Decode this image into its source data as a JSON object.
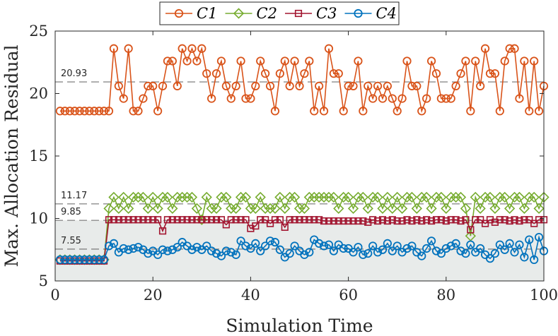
{
  "chart_data": {
    "type": "line",
    "title": "",
    "xlabel": "Simulation Time",
    "ylabel": "Max. Allocation Residual",
    "xlim": [
      0,
      100
    ],
    "ylim": [
      5,
      25
    ],
    "xticks": [
      "0",
      "20",
      "40",
      "60",
      "80",
      "100"
    ],
    "yticks": [
      "5",
      "10",
      "15",
      "20",
      "25"
    ],
    "shaded_region": {
      "y_from": 5,
      "y_to": 9.85,
      "color": "#e8ebea"
    },
    "reference_lines": [
      {
        "label": "20.93",
        "value": 20.93
      },
      {
        "label": "11.17",
        "value": 11.17
      },
      {
        "label": "9.85",
        "value": 9.85
      },
      {
        "label": "7.55",
        "value": 7.55
      }
    ],
    "legend": {
      "position": "top-center",
      "entries": [
        "C1",
        "C2",
        "C3",
        "C4"
      ]
    },
    "colors": {
      "C1": "#d95319",
      "C2": "#77ac30",
      "C3": "#a2142f",
      "C4": "#0072bd",
      "ref_line": "#8c8c8c"
    },
    "x": [
      1,
      2,
      3,
      4,
      5,
      6,
      7,
      8,
      9,
      10,
      11,
      12,
      13,
      14,
      15,
      16,
      17,
      18,
      19,
      20,
      21,
      22,
      23,
      24,
      25,
      26,
      27,
      28,
      29,
      30,
      31,
      32,
      33,
      34,
      35,
      36,
      37,
      38,
      39,
      40,
      41,
      42,
      43,
      44,
      45,
      46,
      47,
      48,
      49,
      50,
      51,
      52,
      53,
      54,
      55,
      56,
      57,
      58,
      59,
      60,
      61,
      62,
      63,
      64,
      65,
      66,
      67,
      68,
      69,
      70,
      71,
      72,
      73,
      74,
      75,
      76,
      77,
      78,
      79,
      80,
      81,
      82,
      83,
      84,
      85,
      86,
      87,
      88,
      89,
      90,
      91,
      92,
      93,
      94,
      95,
      96,
      97,
      98,
      99,
      100
    ],
    "series": [
      {
        "name": "C1",
        "marker": "circle",
        "values": [
          18.6,
          18.6,
          18.6,
          18.6,
          18.6,
          18.6,
          18.6,
          18.6,
          18.6,
          18.6,
          18.6,
          23.6,
          20.6,
          19.6,
          23.6,
          18.6,
          18.6,
          19.6,
          20.6,
          20.6,
          18.6,
          20.6,
          22.6,
          22.6,
          20.6,
          23.6,
          22.6,
          23.6,
          22.6,
          23.6,
          21.6,
          19.6,
          21.6,
          22.6,
          20.6,
          19.6,
          20.6,
          22.6,
          19.6,
          19.6,
          20.6,
          22.6,
          21.6,
          20.6,
          18.6,
          21.6,
          22.6,
          20.6,
          22.6,
          20.6,
          21.6,
          22.6,
          18.6,
          20.6,
          18.6,
          23.6,
          21.6,
          21.6,
          18.6,
          20.6,
          20.6,
          22.6,
          18.6,
          20.6,
          19.6,
          20.6,
          19.6,
          20.6,
          19.6,
          18.6,
          19.6,
          22.6,
          20.6,
          20.6,
          18.6,
          19.6,
          22.6,
          21.6,
          19.6,
          19.6,
          19.6,
          20.6,
          21.6,
          22.6,
          18.6,
          22.6,
          20.6,
          23.6,
          21.6,
          21.6,
          18.6,
          22.6,
          23.6,
          23.6,
          19.6,
          22.6,
          18.6,
          22.6,
          18.6,
          20.6
        ]
      },
      {
        "name": "C2",
        "marker": "diamond",
        "values": [
          6.7,
          6.7,
          6.7,
          6.7,
          6.7,
          6.7,
          6.7,
          6.7,
          6.7,
          6.7,
          10.8,
          11.7,
          10.8,
          11.7,
          10.8,
          11.7,
          11.7,
          11.7,
          10.8,
          11.7,
          10.8,
          11.7,
          11.7,
          10.8,
          11.7,
          11.7,
          11.7,
          11.7,
          10.8,
          9.9,
          11.7,
          10.8,
          10.8,
          11.7,
          11.7,
          10.8,
          10.8,
          11.7,
          11.7,
          10.8,
          10.8,
          11.7,
          10.8,
          10.8,
          10.8,
          11.7,
          10.8,
          11.7,
          11.7,
          10.8,
          10.8,
          11.7,
          11.7,
          11.7,
          11.7,
          11.7,
          11.7,
          10.8,
          11.7,
          11.7,
          10.8,
          11.7,
          11.7,
          10.8,
          11.7,
          11.7,
          10.8,
          11.7,
          10.8,
          11.7,
          10.8,
          11.7,
          11.7,
          10.8,
          11.7,
          11.7,
          10.8,
          11.7,
          11.7,
          10.8,
          11.7,
          11.7,
          11.7,
          10.8,
          8.6,
          11.7,
          10.8,
          11.7,
          11.7,
          10.8,
          11.7,
          11.7,
          10.8,
          11.7,
          11.7,
          10.8,
          11.7,
          11.7,
          10.8,
          11.7
        ]
      },
      {
        "name": "C3",
        "marker": "square",
        "values": [
          6.6,
          6.6,
          6.6,
          6.6,
          6.6,
          6.6,
          6.6,
          6.6,
          6.6,
          6.6,
          9.9,
          9.9,
          9.9,
          9.9,
          9.9,
          9.9,
          9.9,
          9.9,
          9.9,
          9.9,
          9.9,
          9.0,
          9.9,
          9.9,
          9.9,
          9.9,
          9.9,
          9.9,
          9.9,
          9.9,
          9.9,
          9.9,
          9.9,
          9.9,
          9.5,
          9.9,
          9.9,
          9.9,
          9.9,
          9.2,
          9.4,
          9.9,
          9.9,
          9.6,
          9.9,
          9.9,
          9.3,
          9.9,
          9.9,
          9.9,
          9.9,
          9.9,
          9.9,
          9.9,
          9.8,
          9.8,
          9.8,
          9.8,
          9.8,
          9.8,
          9.8,
          9.8,
          9.8,
          9.7,
          9.9,
          9.8,
          9.9,
          9.8,
          9.9,
          9.8,
          9.8,
          9.9,
          9.8,
          9.9,
          9.8,
          9.9,
          9.8,
          9.9,
          9.9,
          9.8,
          9.9,
          9.9,
          9.8,
          9.9,
          9.1,
          9.9,
          9.9,
          9.6,
          9.9,
          9.7,
          9.9,
          9.9,
          9.8,
          9.9,
          9.8,
          9.9,
          9.9,
          9.6,
          9.9,
          9.9
        ]
      },
      {
        "name": "C4",
        "marker": "circle",
        "values": [
          6.7,
          6.7,
          6.7,
          6.7,
          6.7,
          6.7,
          6.7,
          6.7,
          6.7,
          6.7,
          7.8,
          8.0,
          7.3,
          7.6,
          7.5,
          7.6,
          7.7,
          7.5,
          7.2,
          7.4,
          7.1,
          7.5,
          7.4,
          7.5,
          7.7,
          8.1,
          7.8,
          7.5,
          7.7,
          7.5,
          7.8,
          7.4,
          7.2,
          7.0,
          7.4,
          7.3,
          7.1,
          8.2,
          7.8,
          7.6,
          8.0,
          7.4,
          7.8,
          8.2,
          8.1,
          7.5,
          6.9,
          7.2,
          7.8,
          7.4,
          7.1,
          7.3,
          8.3,
          8.0,
          7.8,
          7.9,
          7.4,
          7.9,
          7.6,
          7.6,
          7.3,
          7.7,
          7.1,
          7.2,
          7.8,
          7.3,
          7.5,
          8.0,
          7.4,
          7.8,
          7.3,
          7.6,
          7.8,
          7.3,
          7.0,
          7.6,
          8.2,
          7.4,
          7.2,
          7.6,
          7.8,
          8.0,
          7.4,
          7.2,
          7.9,
          7.3,
          7.6,
          7.1,
          6.8,
          7.2,
          7.9,
          7.5,
          8.0,
          7.3,
          7.9,
          6.9,
          8.3,
          6.7,
          8.5,
          7.4
        ]
      }
    ]
  }
}
